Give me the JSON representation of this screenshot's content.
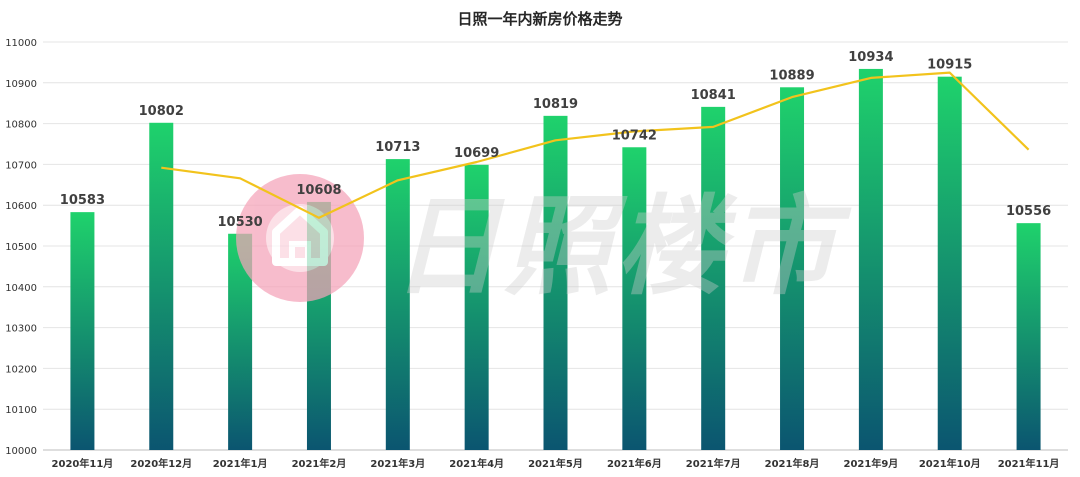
{
  "chart_data": {
    "type": "bar",
    "title": "日照一年内新房价格走势",
    "categories": [
      "2020年11月",
      "2020年12月",
      "2021年1月",
      "2021年2月",
      "2021年3月",
      "2021年4月",
      "2021年5月",
      "2021年6月",
      "2021年7月",
      "2021年8月",
      "2021年9月",
      "2021年10月",
      "2021年11月"
    ],
    "series": [
      {
        "type": "bar",
        "values": [
          10583,
          10802,
          10530,
          10608,
          10713,
          10699,
          10819,
          10742,
          10841,
          10889,
          10934,
          10915,
          10556
        ],
        "color_top": "#1fd26c",
        "color_bottom": "#0b5570"
      },
      {
        "type": "line",
        "values": [
          null,
          10692,
          10666,
          10569,
          10661,
          10706,
          10759,
          10781,
          10792,
          10865,
          10912,
          10925,
          10736
        ],
        "color": "#f2c31c"
      }
    ],
    "ylim": [
      10000,
      11000
    ],
    "yticks": [
      10000,
      10100,
      10200,
      10300,
      10400,
      10500,
      10600,
      10700,
      10800,
      10900,
      11000
    ],
    "grid": true,
    "data_labels": true
  },
  "watermark": {
    "text": "日照楼市",
    "logo_color": "#f5a3b9"
  }
}
